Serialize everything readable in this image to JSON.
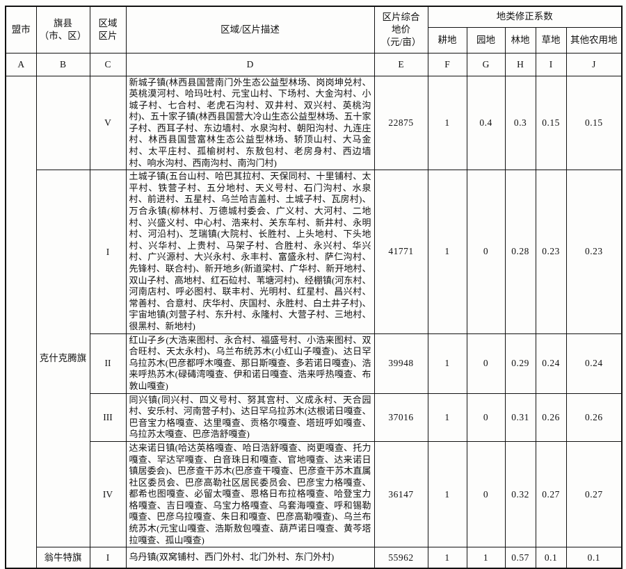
{
  "table": {
    "header": {
      "league": "盟市",
      "banner_line1": "旗县",
      "banner_line2": "（市、区）",
      "zone_line1": "区域",
      "zone_line2": "区片",
      "desc": "区域/区片描述",
      "price_line1": "区片综合",
      "price_line2": "地价",
      "price_line3": "（元/亩）",
      "coef_group": "地类修正系数",
      "coef_cols": [
        "耕地",
        "园地",
        "林地",
        "草地",
        "其他农用地"
      ]
    },
    "letters": [
      "A",
      "B",
      "C",
      "D",
      "E",
      "F",
      "G",
      "H",
      "I",
      "J"
    ],
    "rows": [
      {
        "banner": "",
        "zone": "V",
        "desc": "新城子镇(林西县国营南门外生态公益型林场、岗岗坤兑村、英桃漠河村、哈玛吐村、元宝山村、下场村、大金沟村、小城子村、七合村、老虎石沟村、双井村、双兴村、英桃沟村)、五十家子镇(林西县国营大冷山生态公益型林场、五十家子村、西耳子村、东边墙村、水泉沟村、朝阳沟村、九连庄村、林西县国营富林生态公益型林场、轿顶山村、大马金村、太平庄村、孤榆树村、东敖包村、老房身村、西边墙村、响水沟村、西南沟村、南沟门村)",
        "price": "22875",
        "values": [
          "1",
          "0.4",
          "0.3",
          "0.15",
          "0.15"
        ]
      },
      {
        "banner": "克什克腾旗",
        "zone": "I",
        "desc": "土城子镇(五台山村、哈巴其拉村、天保同村、十里铺村、太平村、铁营子村、五分地村、天义号村、石门沟村、水泉村、前进村、五星村、乌兰哈吉盖村、土城子村、瓦房村)、万合永镇(柳林村、万德城村委会、广义村、大河村、二地村、兴盛义村、中心村、浩来村、关东车村、新井村、永明村、河沿村)、芝瑞镇(大院村、长胜村、上头地村、下头地村、兴华村、上贵村、马架子村、合胜村、永兴村、华兴村、广兴源村、大兴永村、永丰村、富盛永村、萨仁沟村、先锋村、联合村)、新开地乡(新道梁村、广华村、新开地村、双山子村、高地村、红石砬村、苇塘河村)、经棚镇(河东村、河南店村、呼必图村、联丰村、光明村、红星村、昌兴村、常善村、合意村、庆华村、庆国村、永胜村、白土井子村)、宇宙地镇(刘营子村、东升村、永隆村、大营子村、三地村、很黑村、新地村)",
        "price": "41771",
        "values": [
          "1",
          "0",
          "0.28",
          "0.23",
          "0.23"
        ]
      },
      {
        "zone": "II",
        "desc": "红山子乡(大浩来图村、永合村、福盛号村、小浩来图村、双合旺村、天太永村)、乌兰布统苏木(小红山子嘎查)、达日罕乌拉苏木(巴彦都呼木嘎查、那日斯嘎查、多若诺日嘎查)、浩来呼热苏木(碌碡湾嘎查、伊和诺日嘎查、浩来呼热嘎查、布敦山嘎查)",
        "price": "39948",
        "values": [
          "1",
          "0",
          "0.29",
          "0.24",
          "0.24"
        ]
      },
      {
        "zone": "III",
        "desc": "同兴镇(同兴村、四义号村、努其宫村、义成永村、天合园村、安乐村、河南营子村)、达日罕乌拉苏木(达根诺日嘎查、巴音宝力格嘎查、达里嘎查、贡格尔嘎查、塔班呼如嘎查、乌拉苏太嘎查、巴彦浩舒嘎查)",
        "price": "37016",
        "values": [
          "1",
          "0",
          "0.31",
          "0.26",
          "0.26"
        ]
      },
      {
        "zone": "IV",
        "desc": "达来诺日镇(哈达英格嘎查、哈日浩舒嘎查、岗更嘎查、托力嘎查、罕达罕嘎查、白音珠日和嘎查、官地嘎查、达来诺日镇居委会)、巴彦查干苏木(巴彦查干嘎查、巴彦查干苏木直属社区委员会、巴彦高勒社区居民委员会、巴彦宝力格嘎查、都希也图嘎查、必留太嘎查、恩格日布拉格嘎查、哈登宝力格嘎查、吉日嘎查、乌宝力格嘎查、乌套海嘎查、呼和锡勒嘎查、巴彦乌拉嘎查、朱日和嘎查、巴彦高勒嘎查)、乌兰布统苏木(元宝山嘎查、浩斯敖包嘎查、葫芦诺日嘎查、黄芩塔拉嘎查、孤山嘎查)",
        "price": "36147",
        "values": [
          "1",
          "0",
          "0.32",
          "0.27",
          "0.27"
        ]
      },
      {
        "banner": "翁牛特旗",
        "zone": "I",
        "desc": "乌丹镇(双窝铺村、西门外村、北门外村、东门外村)",
        "price": "55962",
        "values": [
          "1",
          "1",
          "0.57",
          "0.1",
          "0.1"
        ]
      }
    ]
  }
}
